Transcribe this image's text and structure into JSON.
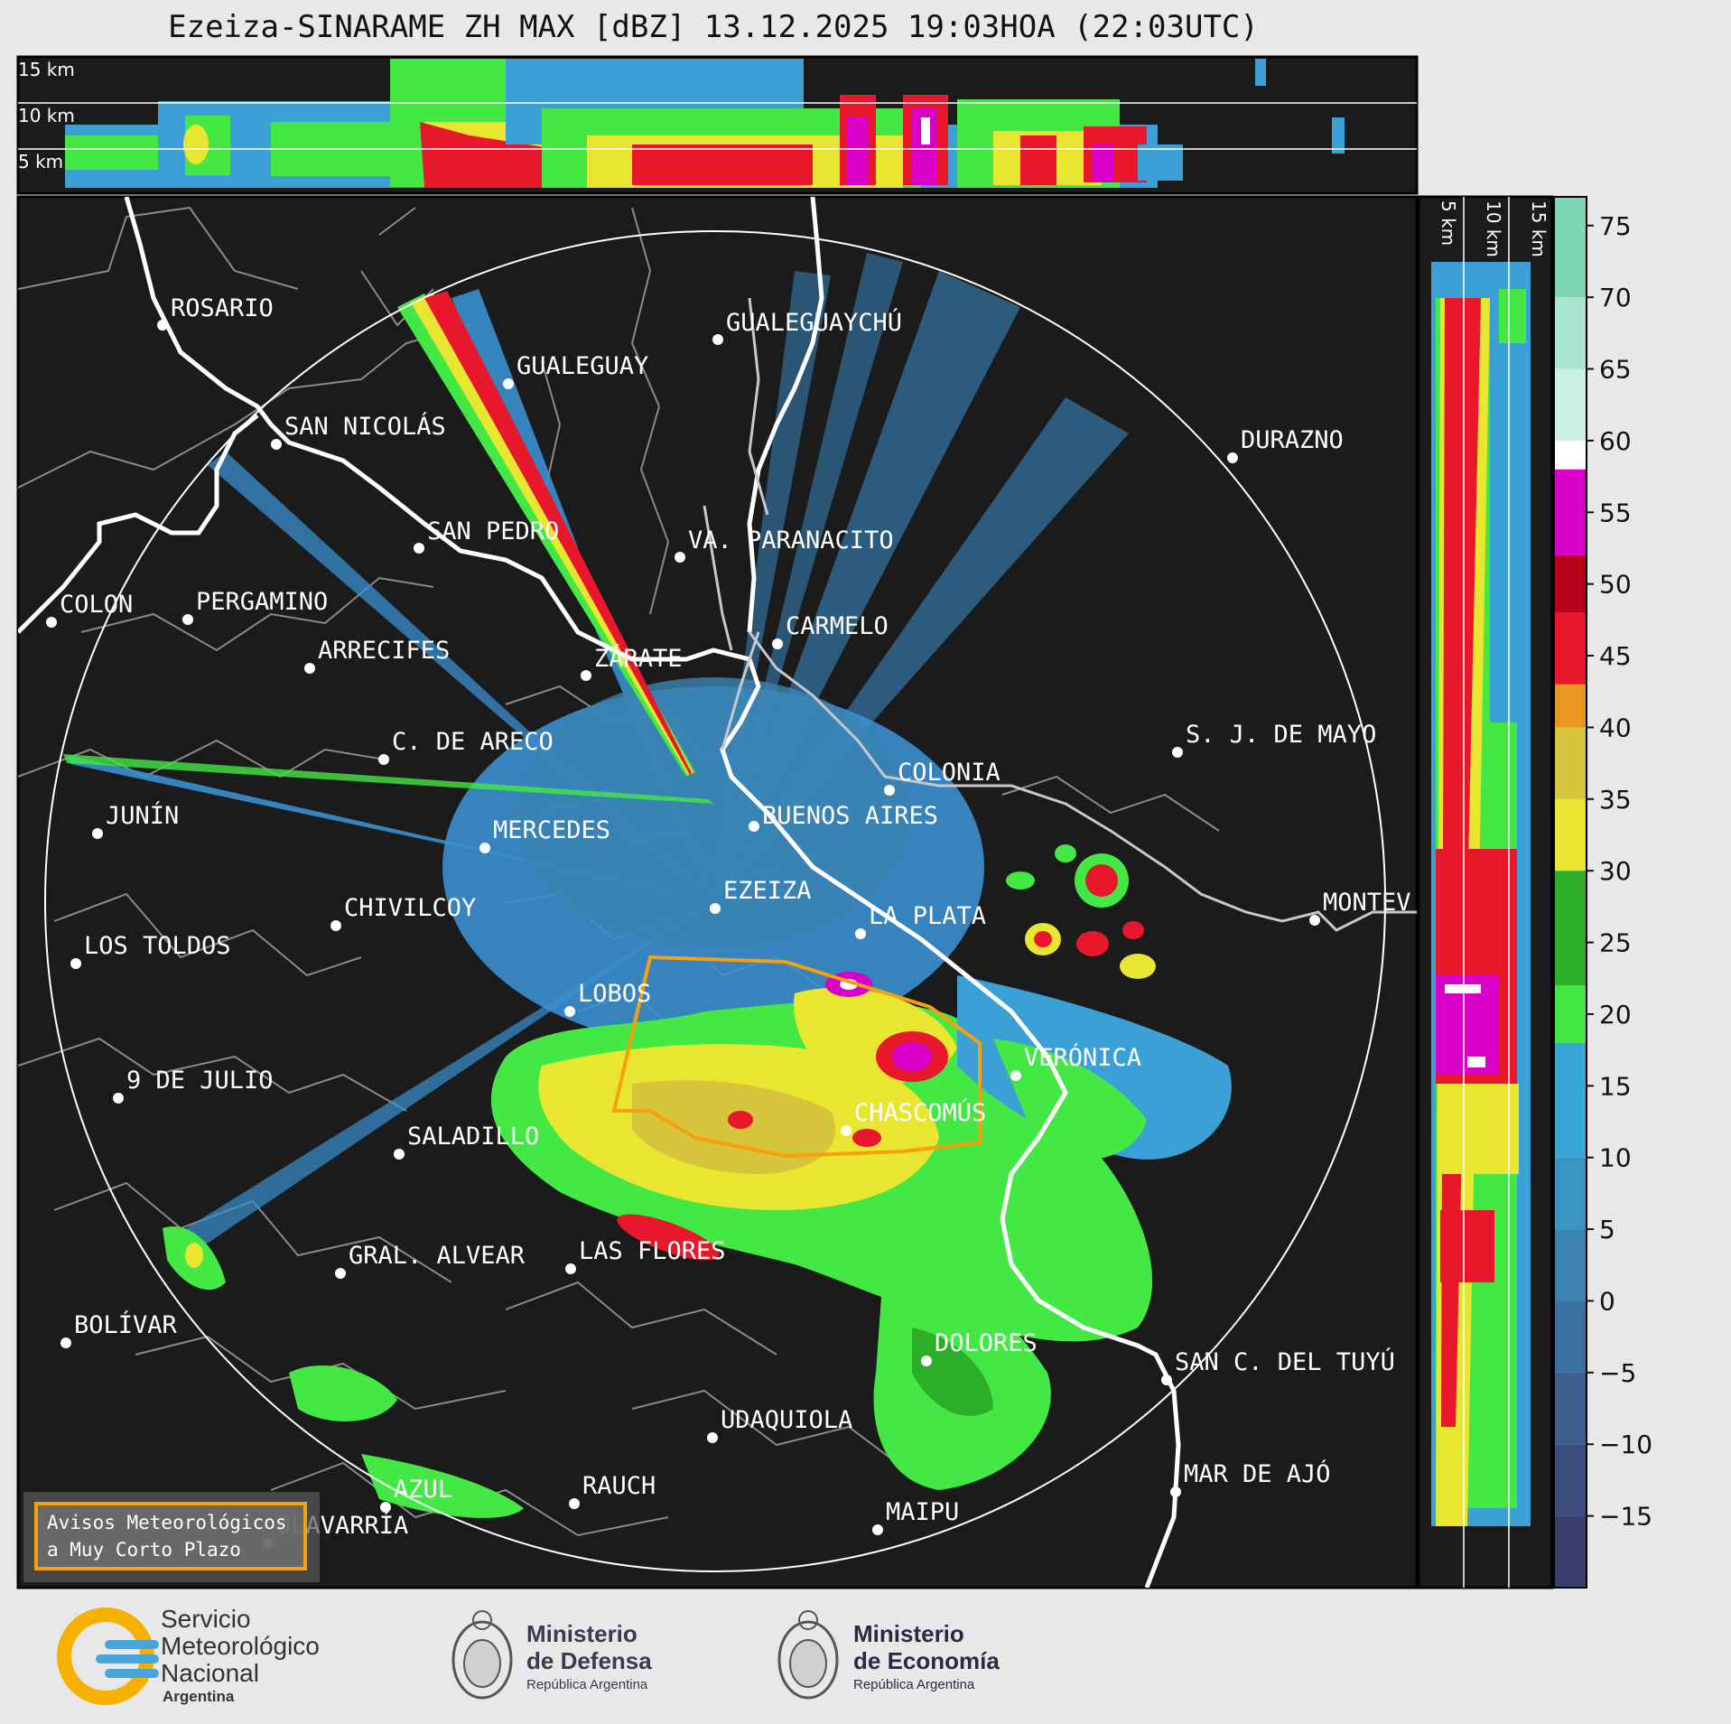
{
  "title": "Ezeiza-SINARAME ZH MAX [dBZ] 13.12.2025 19:03HOA (22:03UTC)",
  "top_panel": {
    "height_labels": [
      "15 km",
      "10 km",
      "5 km"
    ]
  },
  "side_panel": {
    "height_labels": [
      "5 km",
      "10 km",
      "15 km"
    ]
  },
  "colorbar": {
    "ticks": [
      "75",
      "70",
      "65",
      "60",
      "55",
      "50",
      "45",
      "40",
      "35",
      "30",
      "25",
      "20",
      "15",
      "10",
      "5",
      "0",
      "−5",
      "−10",
      "−15"
    ],
    "colors": {
      "n15": "#3b3d6b",
      "n10": "#3d4d7e",
      "n5": "#3c5f8f",
      "0": "#3b71a0",
      "5": "#3b83b1",
      "10": "#3a95c2",
      "15": "#39a7d4",
      "20": "#43e844",
      "25": "#2cae28",
      "30": "#e8e630",
      "35": "#d6c53a",
      "40": "#e99720",
      "45": "#e8172c",
      "50": "#b7001a",
      "55": "#d800c8",
      "60": "#ffffff",
      "65": "#c9f0e0",
      "70": "#a8e6cf",
      "75": "#7ed6b4"
    }
  },
  "map": {
    "cities": [
      {
        "name": "ROSARIO"
      },
      {
        "name": "GUALEGUAYCHÚ"
      },
      {
        "name": "GUALEGUAY"
      },
      {
        "name": "SAN NICOLÁS"
      },
      {
        "name": "DURAZNO"
      },
      {
        "name": "SAN PEDRO"
      },
      {
        "name": "VA. PARANACITO"
      },
      {
        "name": "COLON"
      },
      {
        "name": "PERGAMINO"
      },
      {
        "name": "CARMELO"
      },
      {
        "name": "ARRECIFES"
      },
      {
        "name": "ZÁRATE"
      },
      {
        "name": "S. J. DE MAYO"
      },
      {
        "name": "C. DE ARECO"
      },
      {
        "name": "COLONIA"
      },
      {
        "name": "JUNÍN"
      },
      {
        "name": "BUENOS AIRES"
      },
      {
        "name": "MERCEDES"
      },
      {
        "name": "EZEIZA"
      },
      {
        "name": "MONTEV"
      },
      {
        "name": "CHIVILCOY"
      },
      {
        "name": "LA PLATA"
      },
      {
        "name": "LOS TOLDOS"
      },
      {
        "name": "LOBOS"
      },
      {
        "name": "VERÓNICA"
      },
      {
        "name": "9 DE JULIO"
      },
      {
        "name": "CHASCOMÚS"
      },
      {
        "name": "SALADILLO"
      },
      {
        "name": "GRAL. ALVEAR"
      },
      {
        "name": "LAS FLORES"
      },
      {
        "name": "BOLÍVAR"
      },
      {
        "name": "DOLORES"
      },
      {
        "name": "SAN C. DEL TUYÚ"
      },
      {
        "name": "UDAQUIOLA"
      },
      {
        "name": "AZUL"
      },
      {
        "name": "RAUCH"
      },
      {
        "name": "MAR DE AJÓ"
      },
      {
        "name": "OLAVARRÍA"
      },
      {
        "name": "MAIPU"
      }
    ],
    "alert_box": {
      "line1": "Avisos Meteorológicos",
      "line2": "a Muy Corto Plazo"
    }
  },
  "logos": {
    "smn": {
      "line1": "Servicio",
      "line2": "Meteorológico",
      "line3": "Nacional",
      "line4": "Argentina"
    },
    "defensa": {
      "line1": "Ministerio",
      "line2": "de Defensa",
      "line3": "República Argentina"
    },
    "economia": {
      "line1": "Ministerio",
      "line2": "de Economía",
      "line3": "República Argentina"
    }
  }
}
